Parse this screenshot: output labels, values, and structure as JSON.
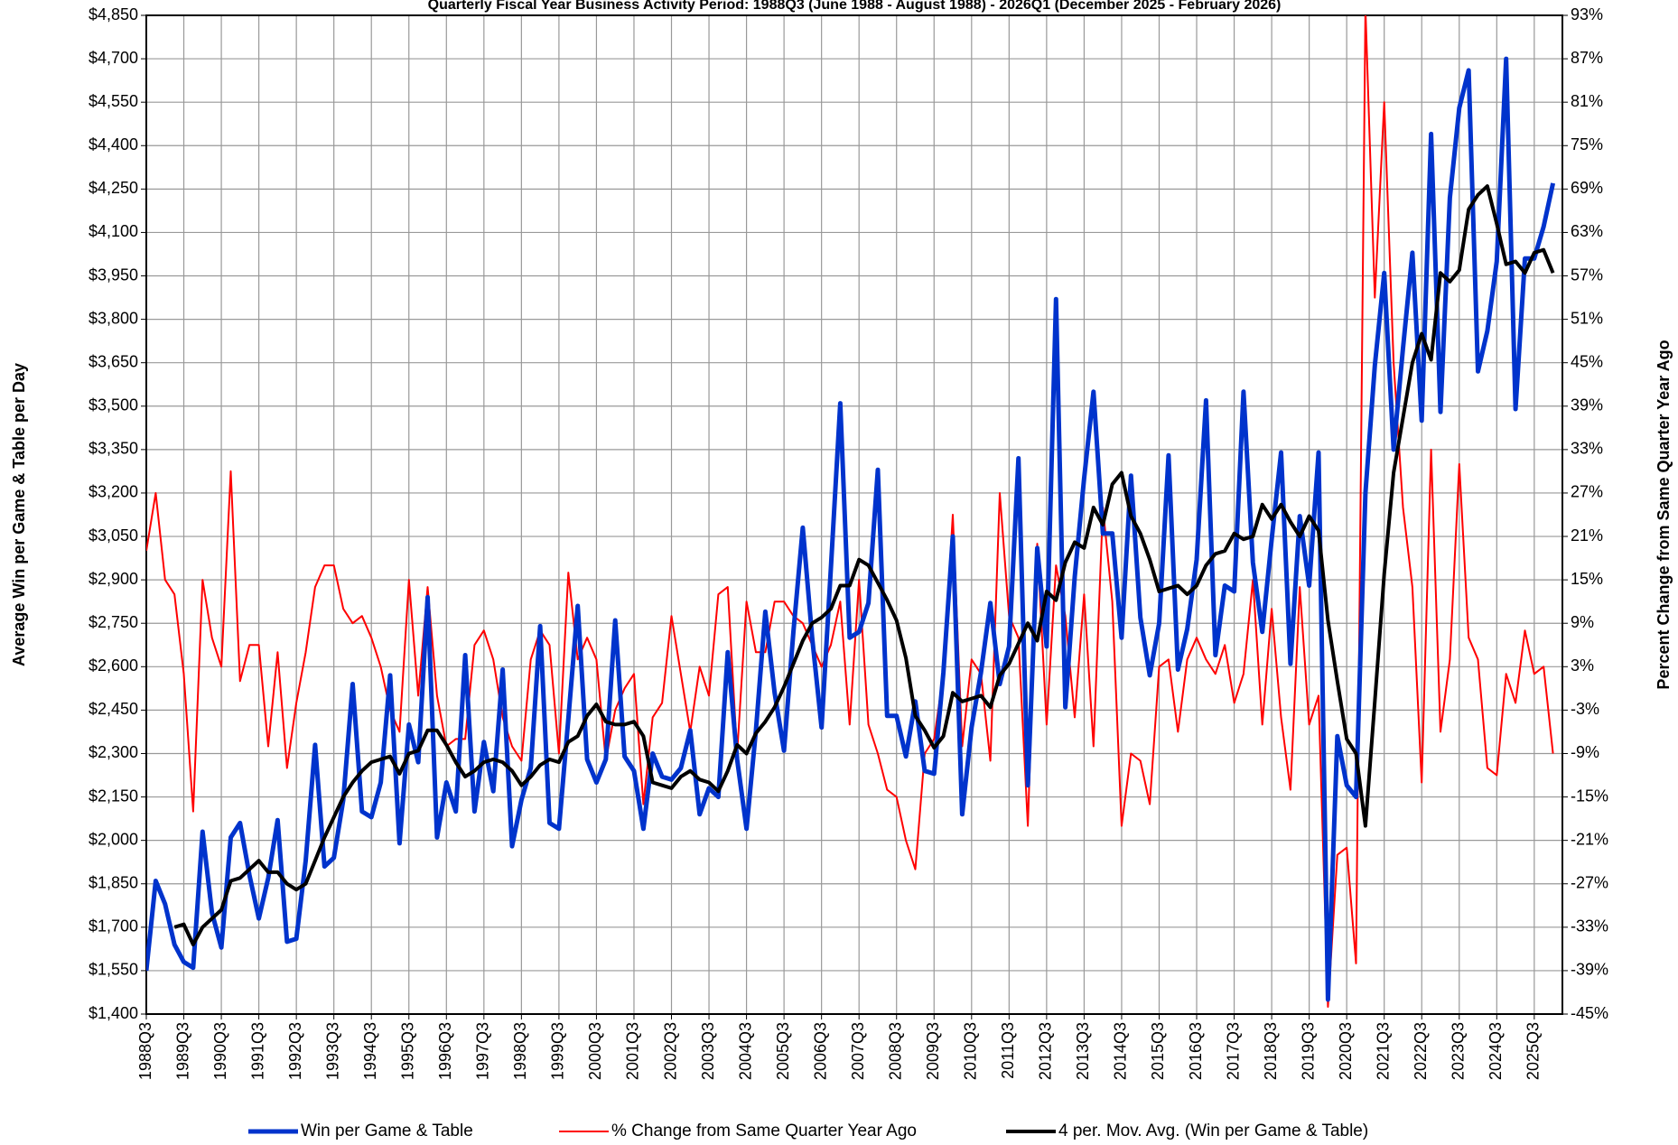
{
  "chart_data": {
    "type": "line",
    "title": "Quarterly Fiscal Year Business Activity Period: 1988Q3 (June 1988 - August 1988) - 2026Q1 (December 2025 - February 2026)",
    "y_label": "Average Win per Game & Table per Day",
    "y2_label": "Percent Change from Same Quarter Year Ago",
    "grid": true,
    "legend": "bottom",
    "categories": [
      "1988Q3",
      null,
      null,
      null,
      "1989Q3",
      null,
      null,
      null,
      "1990Q3",
      null,
      null,
      null,
      "1991Q3",
      null,
      null,
      null,
      "1992Q3",
      null,
      null,
      null,
      "1993Q3",
      null,
      null,
      null,
      "1994Q3",
      null,
      null,
      null,
      "1995Q3",
      null,
      null,
      null,
      "1996Q3",
      null,
      null,
      null,
      "1997Q3",
      null,
      null,
      null,
      "1998Q3",
      null,
      null,
      null,
      "1999Q3",
      null,
      null,
      null,
      "2000Q3",
      null,
      null,
      null,
      "2001Q3",
      null,
      null,
      null,
      "2002Q3",
      null,
      null,
      null,
      "2003Q3",
      null,
      null,
      null,
      "2004Q3",
      null,
      null,
      null,
      "2005Q3",
      null,
      null,
      null,
      "2006Q3",
      null,
      null,
      null,
      "2007Q3",
      null,
      null,
      null,
      "2008Q3",
      null,
      null,
      null,
      "2009Q3",
      null,
      null,
      null,
      "2010Q3",
      null,
      null,
      null,
      "2011Q3",
      null,
      null,
      null,
      "2012Q3",
      null,
      null,
      null,
      "2013Q3",
      null,
      null,
      null,
      "2014Q3",
      null,
      null,
      null,
      "2015Q3",
      null,
      null,
      null,
      "2016Q3",
      null,
      null,
      null,
      "2017Q3",
      null,
      null,
      null,
      "2018Q3",
      null,
      null,
      null,
      "2019Q3",
      null,
      null,
      null,
      "2020Q3",
      null,
      null,
      null,
      "2021Q3",
      null,
      null,
      null,
      "2022Q3",
      null,
      null,
      null,
      "2023Q3",
      null,
      null,
      null,
      "2024Q3",
      null,
      null,
      null,
      "2025Q3",
      null,
      null
    ],
    "series": [
      {
        "name": "Win per Game & Table",
        "color": "#0033cc",
        "width": 5,
        "values": [
          1550,
          1860,
          1780,
          1640,
          1580,
          1560,
          2030,
          1750,
          1630,
          2010,
          2060,
          1880,
          1730,
          1870,
          2070,
          1650,
          1660,
          1930,
          2330,
          1910,
          1940,
          2140,
          2540,
          2100,
          2080,
          2200,
          2570,
          1990,
          2400,
          2270,
          2840,
          2010,
          2200,
          2100,
          2640,
          2100,
          2340,
          2170,
          2590,
          1980,
          2140,
          2250,
          2740,
          2060,
          2040,
          2420,
          2810,
          2280,
          2200,
          2280,
          2760,
          2290,
          2240,
          2040,
          2300,
          2220,
          2210,
          2250,
          2380,
          2090,
          2180,
          2150,
          2650,
          2280,
          2040,
          2380,
          2790,
          2510,
          2310,
          2720,
          3080,
          2700,
          2390,
          2940,
          3510,
          2700,
          2720,
          2820,
          3280,
          2430,
          2430,
          2290,
          2480,
          2240,
          2230,
          2580,
          3050,
          2090,
          2390,
          2580,
          2820,
          2540,
          2670,
          3320,
          2190,
          3010,
          2670,
          3870,
          2460,
          2910,
          3250,
          3550,
          3060,
          3060,
          2700,
          3260,
          2770,
          2570,
          2750,
          3330,
          2590,
          2730,
          2970,
          3520,
          2640,
          2880,
          2860,
          3550,
          2960,
          2720,
          3040,
          3340,
          2610,
          3120,
          2880,
          3340,
          1450,
          2360,
          2190,
          2150,
          3200,
          3640,
          3960,
          3350,
          3700,
          4030,
          3450,
          4440,
          3480,
          4220,
          4530,
          4660,
          3620,
          3760,
          4000,
          4700,
          3490,
          4010,
          4010,
          4120,
          4270
        ]
      },
      {
        "name": "% Change from Same Quarter Year Ago",
        "color": "#ff0000",
        "width": 2,
        "axis": "y2",
        "values": [
          19,
          27,
          15,
          13,
          2,
          -17,
          15,
          7,
          3,
          30,
          1,
          6,
          6,
          -8,
          5,
          -11,
          -2,
          5,
          14,
          17,
          17,
          11,
          9,
          10,
          7,
          3,
          -3,
          -6,
          15,
          -1,
          14,
          -1,
          -8,
          -7,
          -7,
          6,
          8,
          4,
          -4,
          -8,
          -10,
          4,
          8,
          6,
          -9,
          16,
          4,
          7,
          4,
          -10,
          -3,
          0,
          2,
          -16,
          -4,
          -2,
          10,
          2,
          -6,
          3,
          -1,
          13,
          14,
          -9,
          12,
          5,
          5,
          12,
          12,
          10,
          9,
          6,
          3,
          6,
          12,
          -5,
          15,
          -5,
          -9,
          -14,
          -15,
          -21,
          -25,
          -9,
          -7,
          2,
          24,
          -8,
          4,
          2,
          -10,
          27,
          10,
          7,
          -19,
          20,
          -5,
          17,
          10,
          -4,
          13,
          -8,
          25,
          12,
          -19,
          -9,
          -10,
          -16,
          3,
          4,
          -6,
          4,
          7,
          4,
          2,
          6,
          -2,
          2,
          15,
          -5,
          11,
          -4,
          -14,
          14,
          -5,
          -1,
          -44,
          -23,
          -22,
          -38,
          94,
          54,
          81,
          45,
          25,
          14,
          -13,
          33,
          -6,
          4,
          31,
          7,
          4,
          -11,
          -12,
          2,
          -2,
          8,
          2,
          3,
          -9
        ]
      },
      {
        "name": "4 per. Mov. Avg. (Win per Game & Table)",
        "color": "#000000",
        "width": 4,
        "values": [
          null,
          null,
          null,
          1700,
          1710,
          1640,
          1700,
          1730,
          1760,
          1860,
          1870,
          1900,
          1930,
          1890,
          1890,
          1850,
          1830,
          1850,
          1930,
          2010,
          2080,
          2150,
          2200,
          2240,
          2270,
          2280,
          2290,
          2230,
          2300,
          2310,
          2380,
          2380,
          2330,
          2270,
          2220,
          2240,
          2270,
          2280,
          2270,
          2240,
          2190,
          2220,
          2260,
          2280,
          2270,
          2340,
          2360,
          2430,
          2470,
          2410,
          2400,
          2400,
          2410,
          2360,
          2200,
          2190,
          2180,
          2220,
          2240,
          2210,
          2200,
          2170,
          2240,
          2330,
          2300,
          2370,
          2410,
          2460,
          2530,
          2610,
          2690,
          2750,
          2770,
          2800,
          2880,
          2880,
          2970,
          2950,
          2890,
          2830,
          2760,
          2630,
          2430,
          2380,
          2320,
          2360,
          2510,
          2480,
          2490,
          2500,
          2460,
          2570,
          2610,
          2680,
          2750,
          2690,
          2860,
          2830,
          2960,
          3030,
          3010,
          3150,
          3090,
          3230,
          3270,
          3120,
          3060,
          2970,
          2860,
          2870,
          2880,
          2850,
          2880,
          2950,
          2990,
          3000,
          3060,
          3040,
          3050,
          3160,
          3110,
          3160,
          3100,
          3050,
          3120,
          3070,
          2760,
          2550,
          2350,
          2300,
          2050,
          2480,
          2920,
          3270,
          3460,
          3650,
          3750,
          3660,
          3960,
          3930,
          3970,
          4180,
          4230,
          4260,
          4130,
          3990,
          4000,
          3960,
          4030,
          4040,
          3960
        ]
      }
    ],
    "ylim": [
      1400,
      4850
    ],
    "yticks": [
      {
        "value": 1400,
        "label": "$1,400"
      },
      {
        "value": 1550,
        "label": "$1,550"
      },
      {
        "value": 1700,
        "label": "$1,700"
      },
      {
        "value": 1850,
        "label": "$1,850"
      },
      {
        "value": 2000,
        "label": "$2,000"
      },
      {
        "value": 2150,
        "label": "$2,150"
      },
      {
        "value": 2300,
        "label": "$2,300"
      },
      {
        "value": 2450,
        "label": "$2,450"
      },
      {
        "value": 2600,
        "label": "$2,600"
      },
      {
        "value": 2750,
        "label": "$2,750"
      },
      {
        "value": 2900,
        "label": "$2,900"
      },
      {
        "value": 3050,
        "label": "$3,050"
      },
      {
        "value": 3200,
        "label": "$3,200"
      },
      {
        "value": 3350,
        "label": "$3,350"
      },
      {
        "value": 3500,
        "label": "$3,500"
      },
      {
        "value": 3650,
        "label": "$3,650"
      },
      {
        "value": 3800,
        "label": "$3,800"
      },
      {
        "value": 3950,
        "label": "$3,950"
      },
      {
        "value": 4100,
        "label": "$4,100"
      },
      {
        "value": 4250,
        "label": "$4,250"
      },
      {
        "value": 4400,
        "label": "$4,400"
      },
      {
        "value": 4550,
        "label": "$4,550"
      },
      {
        "value": 4700,
        "label": "$4,700"
      },
      {
        "value": 4850,
        "label": "$4,850"
      }
    ],
    "y2lim": [
      -45,
      93
    ],
    "y2ticks": [
      {
        "value": -45,
        "label": "-45%"
      },
      {
        "value": -39,
        "label": "-39%"
      },
      {
        "value": -33,
        "label": "-33%"
      },
      {
        "value": -27,
        "label": "-27%"
      },
      {
        "value": -21,
        "label": "-21%"
      },
      {
        "value": -15,
        "label": "-15%"
      },
      {
        "value": -9,
        "label": "-9%"
      },
      {
        "value": -3,
        "label": "-3%"
      },
      {
        "value": 3,
        "label": "3%"
      },
      {
        "value": 9,
        "label": "9%"
      },
      {
        "value": 15,
        "label": "15%"
      },
      {
        "value": 21,
        "label": "21%"
      },
      {
        "value": 27,
        "label": "27%"
      },
      {
        "value": 33,
        "label": "33%"
      },
      {
        "value": 39,
        "label": "39%"
      },
      {
        "value": 45,
        "label": "45%"
      },
      {
        "value": 51,
        "label": "51%"
      },
      {
        "value": 57,
        "label": "57%"
      },
      {
        "value": 63,
        "label": "63%"
      },
      {
        "value": 69,
        "label": "69%"
      },
      {
        "value": 75,
        "label": "75%"
      },
      {
        "value": 81,
        "label": "81%"
      },
      {
        "value": 87,
        "label": "87%"
      },
      {
        "value": 93,
        "label": "93%"
      }
    ]
  }
}
